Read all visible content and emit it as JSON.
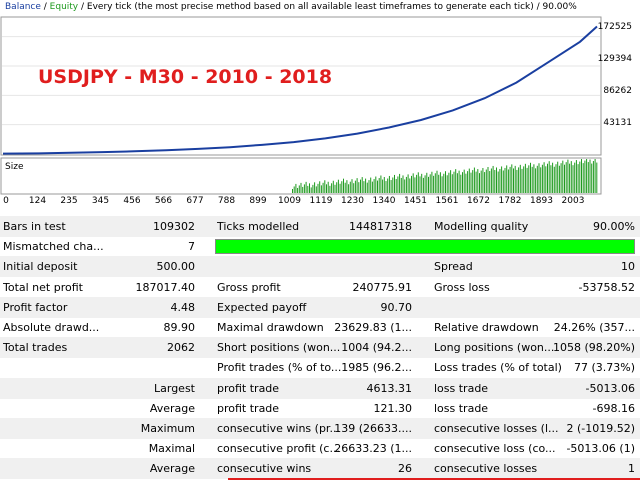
{
  "header": {
    "balance": "Balance",
    "separator1": " / ",
    "equity": "Equity",
    "description": " / Every tick (the most precise method based on all available least timeframes to generate each tick) / 90.00%"
  },
  "overlay_title": "USDJPY - M30 - 2010 - 2018",
  "size_label": "Size",
  "y_ticks": [
    "172525",
    "129394",
    "86262",
    "43131"
  ],
  "x_ticks": [
    "0",
    "124",
    "235",
    "345",
    "456",
    "566",
    "677",
    "788",
    "899",
    "1009",
    "1119",
    "1230",
    "1340",
    "1451",
    "1561",
    "1672",
    "1782",
    "1893",
    "2003"
  ],
  "colors": {
    "balance_line": "#1a3fa0",
    "size_bars": "#1f9a1f",
    "title_red": "#e01e1e",
    "quality_bar": "#00ff00"
  },
  "chart_data": {
    "type": "line",
    "series": [
      {
        "name": "Balance",
        "x": [
          0,
          124,
          235,
          345,
          456,
          566,
          677,
          788,
          899,
          1009,
          1119,
          1230,
          1340,
          1451,
          1561,
          1672,
          1782,
          1893,
          2003,
          2062
        ],
        "values": [
          500,
          1000,
          1800,
          2800,
          4000,
          5500,
          7500,
          10000,
          13500,
          17500,
          23000,
          30000,
          39000,
          50000,
          64000,
          82000,
          105000,
          135000,
          165000,
          187517
        ]
      }
    ],
    "ylim": [
      0,
      200000
    ],
    "y_ticks": [
      43131,
      86262,
      129394,
      172525
    ]
  },
  "rows": [
    {
      "c1l": "Bars in test",
      "c1v": "109302",
      "c2l": "Ticks modelled",
      "c2v": "144817318",
      "c3l": "Modelling quality",
      "c3v": "90.00%"
    },
    {
      "c1l": "Mismatched cha...",
      "c1v": "7",
      "bar": true
    },
    {
      "c1l": "Initial deposit",
      "c1v": "500.00",
      "c2l": "",
      "c2v": "",
      "c3l": "Spread",
      "c3v": "10"
    },
    {
      "c1l": "Total net profit",
      "c1v": "187017.40",
      "c2l": "Gross profit",
      "c2v": "240775.91",
      "c3l": "Gross loss",
      "c3v": "-53758.52"
    },
    {
      "c1l": "Profit factor",
      "c1v": "4.48",
      "c2l": "Expected payoff",
      "c2v": "90.70",
      "c3l": "",
      "c3v": ""
    },
    {
      "c1l": "Absolute drawd...",
      "c1v": "89.90",
      "c2l": "Maximal drawdown",
      "c2v": "23629.83 (1...",
      "c3l": "Relative drawdown",
      "c3v": "24.26% (357..."
    },
    {
      "c1l": "Total trades",
      "c1v": "2062",
      "c2l": "Short positions (won...",
      "c2v": "1004 (94.2...",
      "c3l": "Long positions (won...",
      "c3v": "1058 (98.20%)"
    },
    {
      "c1l": "",
      "c1v": "",
      "c2l": "Profit trades (% of to...",
      "c2v": "1985 (96.2...",
      "c3l": "Loss trades (% of total)",
      "c3v": "77 (3.73%)"
    },
    {
      "c1l": "",
      "c1v": "Largest",
      "c2l": "profit trade",
      "c2v": "4613.31",
      "c3l": "loss trade",
      "c3v": "-5013.06"
    },
    {
      "c1l": "",
      "c1v": "Average",
      "c2l": "profit trade",
      "c2v": "121.30",
      "c3l": "loss trade",
      "c3v": "-698.16"
    },
    {
      "c1l": "",
      "c1v": "Maximum",
      "c2l": "consecutive wins (pr...",
      "c2v": "139 (26633....",
      "c3l": "consecutive losses (l...",
      "c3v": "2 (-1019.52)"
    },
    {
      "c1l": "",
      "c1v": "Maximal",
      "c2l": "consecutive profit (c...",
      "c2v": "26633.23 (1...",
      "c3l": "consecutive loss (co...",
      "c3v": "-5013.06 (1)"
    },
    {
      "c1l": "",
      "c1v": "Average",
      "c2l": "consecutive wins",
      "c2v": "26",
      "c3l": "consecutive losses",
      "c3v": "1"
    }
  ]
}
